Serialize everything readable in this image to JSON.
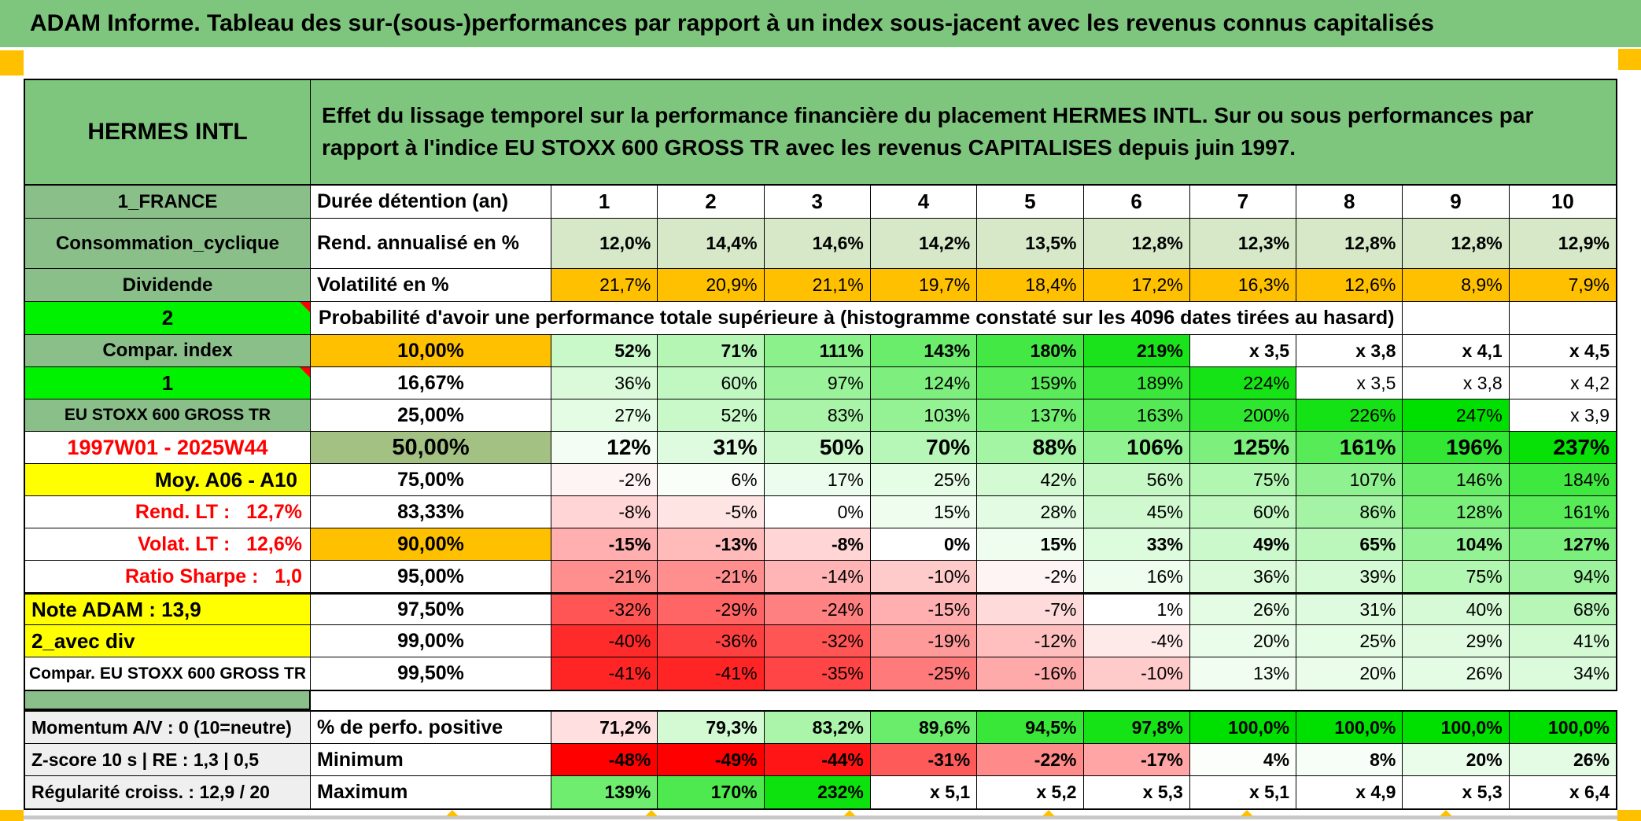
{
  "title": "ADAM Informe. Tableau des sur-(sous-)performances par rapport à un index sous-jacent avec les revenus connus capitalisés",
  "header": {
    "instrument": "HERMES INTL",
    "description": "Effet du lissage temporel sur la performance financière du placement HERMES INTL. Sur ou sous performances par rapport à l'indice EU STOXX 600 GROSS TR avec les revenus CAPITALISES depuis juin 1997."
  },
  "colors": {
    "header_green": "#7EC67E",
    "label_green": "#8ABF8A",
    "bright_green": "#00F200",
    "accent_orange": "#FFC000",
    "accent_yellow": "#FFFF00",
    "sage_green": "#A3C183",
    "pale_green": "#D6E8C8",
    "label_gray": "#EFEFEF",
    "negative_red": "#FF0000"
  },
  "table": {
    "columns": [
      "1",
      "2",
      "3",
      "4",
      "5",
      "6",
      "7",
      "8",
      "9",
      "10"
    ],
    "rows_main": [
      {
        "type": "cols",
        "name": "duree-detention",
        "label": "1_FRANCE",
        "label_style": "green",
        "metric": "Durée détention (an)",
        "metric_style": "name",
        "values": [
          "1",
          "2",
          "3",
          "4",
          "5",
          "6",
          "7",
          "8",
          "9",
          "10"
        ]
      },
      {
        "type": "data",
        "name": "rend-annualise",
        "label": "Consommation_cyclique",
        "label_style": "green",
        "metric": "Rend. annualisé en %",
        "metric_style": "name",
        "fill": "palegreen",
        "bold": true,
        "tall": true,
        "values": [
          "12,0%",
          "14,4%",
          "14,6%",
          "14,2%",
          "13,5%",
          "12,8%",
          "12,3%",
          "12,8%",
          "12,8%",
          "12,9%"
        ]
      },
      {
        "type": "data",
        "name": "volatilite",
        "label": "Dividende",
        "label_style": "green",
        "metric": "Volatilité en %",
        "metric_style": "name",
        "fill": "orange",
        "h42": true,
        "values": [
          "21,7%",
          "20,9%",
          "21,1%",
          "19,7%",
          "18,4%",
          "17,2%",
          "16,3%",
          "12,6%",
          "8,9%",
          "7,9%"
        ]
      },
      {
        "type": "merged",
        "name": "probabilite",
        "label": "2",
        "label_style": "bright-tri",
        "h42": true,
        "text": "Probabilité d'avoir une performance totale supérieure à (histogramme constaté sur les 4096 dates tirées au hasard)",
        "empty_cells": 2
      },
      {
        "type": "data",
        "name": "p10",
        "label": "Compar. index",
        "label_style": "green",
        "metric": "10,00%",
        "metric_style": "pct-orange",
        "scale": "default",
        "bold": true,
        "values": [
          "52%",
          "71%",
          "111%",
          "143%",
          "180%",
          "219%",
          "x 3,5",
          "x 3,8",
          "x 4,1",
          "x 4,5"
        ]
      },
      {
        "type": "data",
        "name": "p16-67",
        "label": "1",
        "label_style": "bright-tri",
        "metric": "16,67%",
        "metric_style": "pct",
        "scale": "default",
        "values": [
          "36%",
          "60%",
          "97%",
          "124%",
          "159%",
          "189%",
          "224%",
          "x 3,5",
          "x 3,8",
          "x 4,2"
        ]
      },
      {
        "type": "data",
        "name": "p25",
        "label": "EU STOXX 600 GROSS TR",
        "label_style": "green-sm",
        "metric": "25,00%",
        "metric_style": "pct",
        "scale": "default",
        "values": [
          "27%",
          "52%",
          "83%",
          "103%",
          "137%",
          "163%",
          "200%",
          "226%",
          "247%",
          "x 3,9"
        ]
      },
      {
        "type": "data",
        "name": "p50",
        "label": "1997W01 - 2025W44",
        "label_style": "red-center",
        "metric": "50,00%",
        "metric_style": "pct-sage",
        "scale": "default",
        "bold": true,
        "big": true,
        "values": [
          "12%",
          "31%",
          "50%",
          "70%",
          "88%",
          "106%",
          "125%",
          "161%",
          "196%",
          "237%"
        ]
      },
      {
        "type": "data",
        "name": "p75",
        "label": "Moy. A06 - A10",
        "label_style": "yellow-right",
        "metric": "75,00%",
        "metric_style": "pct",
        "scale": "default",
        "values": [
          "-2%",
          "6%",
          "17%",
          "25%",
          "42%",
          "56%",
          "75%",
          "107%",
          "146%",
          "184%"
        ]
      },
      {
        "type": "data",
        "name": "p83-33",
        "label": "Rend. LT :   12,7%",
        "label_style": "red-right",
        "metric": "83,33%",
        "metric_style": "pct",
        "scale": "default",
        "values": [
          "-8%",
          "-5%",
          "0%",
          "15%",
          "28%",
          "45%",
          "60%",
          "86%",
          "128%",
          "161%"
        ]
      },
      {
        "type": "data",
        "name": "p90",
        "label": "Volat. LT :   12,6%",
        "label_style": "red-right",
        "metric": "90,00%",
        "metric_style": "pct-orange",
        "scale": "default",
        "bold": true,
        "values": [
          "-15%",
          "-13%",
          "-8%",
          "0%",
          "15%",
          "33%",
          "49%",
          "65%",
          "104%",
          "127%"
        ]
      },
      {
        "type": "data",
        "name": "p95",
        "label": "Ratio Sharpe :   1,0",
        "label_style": "red-right",
        "metric": "95,00%",
        "metric_style": "pct",
        "scale": "default",
        "values": [
          "-21%",
          "-21%",
          "-14%",
          "-10%",
          "-2%",
          "16%",
          "36%",
          "39%",
          "75%",
          "94%"
        ]
      },
      {
        "type": "data",
        "name": "p97-5",
        "label": "Note ADAM : 13,9",
        "label_style": "yellow-left",
        "metric": "97,50%",
        "metric_style": "pct",
        "scale": "default",
        "thick_top": true,
        "values": [
          "-32%",
          "-29%",
          "-24%",
          "-15%",
          "-7%",
          "1%",
          "26%",
          "31%",
          "40%",
          "68%"
        ]
      },
      {
        "type": "data",
        "name": "p99",
        "label": "2_avec div",
        "label_style": "yellow-left",
        "metric": "99,00%",
        "metric_style": "pct",
        "scale": "default",
        "values": [
          "-40%",
          "-36%",
          "-32%",
          "-19%",
          "-12%",
          "-4%",
          "20%",
          "25%",
          "29%",
          "41%"
        ]
      },
      {
        "type": "data",
        "name": "p99-5",
        "label": "Compar. EU STOXX 600 GROSS TR",
        "label_style": "white-center-sm",
        "metric": "99,50%",
        "metric_style": "pct",
        "scale": "default",
        "values": [
          "-41%",
          "-41%",
          "-35%",
          "-25%",
          "-16%",
          "-10%",
          "13%",
          "20%",
          "26%",
          "34%"
        ]
      }
    ],
    "rows_bottom": [
      {
        "type": "data",
        "name": "perfo-positive",
        "label": "Momentum A/V : 0 (10=neutre)",
        "label_style": "gray",
        "metric": "% de perfo. positive",
        "metric_style": "name",
        "scale": "perfo",
        "bold": true,
        "values": [
          "71,2%",
          "79,3%",
          "83,2%",
          "89,6%",
          "94,5%",
          "97,8%",
          "100,0%",
          "100,0%",
          "100,0%",
          "100,0%"
        ]
      },
      {
        "type": "data",
        "name": "minimum",
        "label": "Z-score 10 s | RE : 1,3 | 0,5",
        "label_style": "gray",
        "metric": "Minimum",
        "metric_style": "name",
        "scale": "default",
        "bold": true,
        "values": [
          "-48%",
          "-49%",
          "-44%",
          "-31%",
          "-22%",
          "-17%",
          "4%",
          "8%",
          "20%",
          "26%"
        ]
      },
      {
        "type": "data",
        "name": "maximum",
        "label": "Régularité croiss. : 12,9 / 20",
        "label_style": "gray",
        "metric": "Maximum",
        "metric_style": "name",
        "scale": "default",
        "bold": true,
        "values": [
          "139%",
          "170%",
          "232%",
          "x 5,1",
          "x 5,2",
          "x 5,3",
          "x 5,1",
          "x 4,9",
          "x 5,3",
          "x 6,4"
        ]
      }
    ]
  }
}
